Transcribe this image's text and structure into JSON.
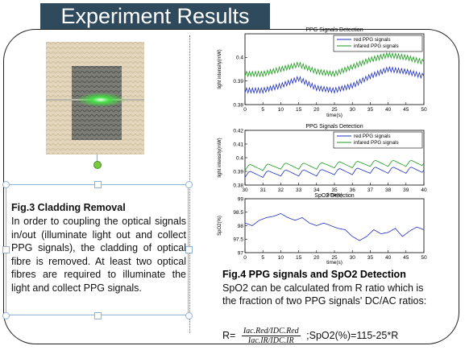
{
  "title": "Experiment Results",
  "fig3": {
    "title": "Fig.3 Cladding Removal",
    "body": "In order to coupling the optical signals in/out (illuminate light out and collect PPG signals), the cladding of optical fibre is removed. At least two optical fibres are required to illuminate the light and collect PPG signals."
  },
  "fig4": {
    "title": "Fig.4 PPG signals and SpO2 Detection",
    "body": "SpO2 can be calculated from R ratio which is the fraction of two PPG signals' DC/AC ratios:",
    "formula_lhs": "R=",
    "formula_num": "Iac.Red/IDC.Red",
    "formula_den": "Iac.IR/IDC.IR",
    "formula_rhs": ";SpO2(%)=115-25*R"
  },
  "chart_data": [
    {
      "type": "line",
      "title": "PPG Signals Detection",
      "xlabel": "time(s)",
      "ylabel": "light intensity(mW)",
      "xlim": [
        0,
        50
      ],
      "ylim": [
        0.38,
        0.41
      ],
      "xticks": [
        "0",
        "5",
        "10",
        "15",
        "20",
        "25",
        "30",
        "35",
        "40",
        "45",
        "50"
      ],
      "yticks": [
        "0.38",
        "0.39",
        "0.4"
      ],
      "legend_position": "top-right",
      "series": [
        {
          "name": "red PPG signals",
          "color": "#1f2fbf",
          "x": [
            0,
            5,
            10,
            15,
            20,
            25,
            30,
            35,
            40,
            45,
            50
          ],
          "y": [
            0.386,
            0.386,
            0.388,
            0.391,
            0.387,
            0.386,
            0.388,
            0.392,
            0.395,
            0.394,
            0.392
          ]
        },
        {
          "name": "infared PPG signals",
          "color": "#1a9a1a",
          "x": [
            0,
            5,
            10,
            15,
            20,
            25,
            30,
            35,
            40,
            45,
            50
          ],
          "y": [
            0.393,
            0.393,
            0.395,
            0.397,
            0.394,
            0.393,
            0.396,
            0.399,
            0.401,
            0.4,
            0.398
          ]
        }
      ]
    },
    {
      "type": "line",
      "title": "PPG Signals Detection",
      "xlabel": "time(s)",
      "ylabel": "light intensity(mW)",
      "xlim": [
        30,
        40
      ],
      "ylim": [
        0.38,
        0.42
      ],
      "xticks": [
        "30",
        "31",
        "32",
        "33",
        "34",
        "35",
        "36",
        "37",
        "38",
        "39",
        "40"
      ],
      "yticks": [
        "0.38",
        "0.39",
        "0.4",
        "0.41",
        "0.42"
      ],
      "legend_position": "top-right",
      "series": [
        {
          "name": "red PPG signals",
          "color": "#1f2fbf",
          "x": [
            30,
            31,
            32,
            33,
            34,
            35,
            36,
            37,
            38,
            39,
            40
          ],
          "y": [
            0.388,
            0.388,
            0.389,
            0.389,
            0.389,
            0.39,
            0.39,
            0.391,
            0.391,
            0.391,
            0.391
          ]
        },
        {
          "name": "infared PPG signals",
          "color": "#1a9a1a",
          "x": [
            30,
            31,
            32,
            33,
            34,
            35,
            36,
            37,
            38,
            39,
            40
          ],
          "y": [
            0.393,
            0.393,
            0.394,
            0.394,
            0.394,
            0.395,
            0.395,
            0.396,
            0.396,
            0.396,
            0.396
          ]
        }
      ]
    },
    {
      "type": "line",
      "title": "SpO2 Detection",
      "xlabel": "time(s)",
      "ylabel": "SpO2(%)",
      "xlim": [
        0,
        50
      ],
      "ylim": [
        97,
        99
      ],
      "xticks": [
        "0",
        "5",
        "10",
        "15",
        "20",
        "25",
        "30",
        "35",
        "40",
        "45",
        "50"
      ],
      "yticks": [
        "97",
        "97.5",
        "98",
        "98.5",
        "99"
      ],
      "series": [
        {
          "name": "",
          "color": "#1f2fbf",
          "x": [
            0,
            2,
            4,
            6,
            8,
            10,
            12,
            14,
            16,
            18,
            20,
            22,
            24,
            26,
            28,
            30,
            32,
            34,
            36,
            38,
            40,
            42,
            44,
            46,
            48,
            50
          ],
          "y": [
            98.1,
            98.0,
            98.2,
            98.3,
            98.35,
            98.45,
            98.3,
            98.2,
            98.3,
            98.1,
            98.0,
            98.1,
            98.0,
            97.9,
            97.85,
            97.6,
            97.45,
            97.6,
            97.85,
            97.7,
            97.75,
            97.9,
            97.6,
            97.8,
            97.95,
            97.85
          ]
        }
      ]
    }
  ]
}
